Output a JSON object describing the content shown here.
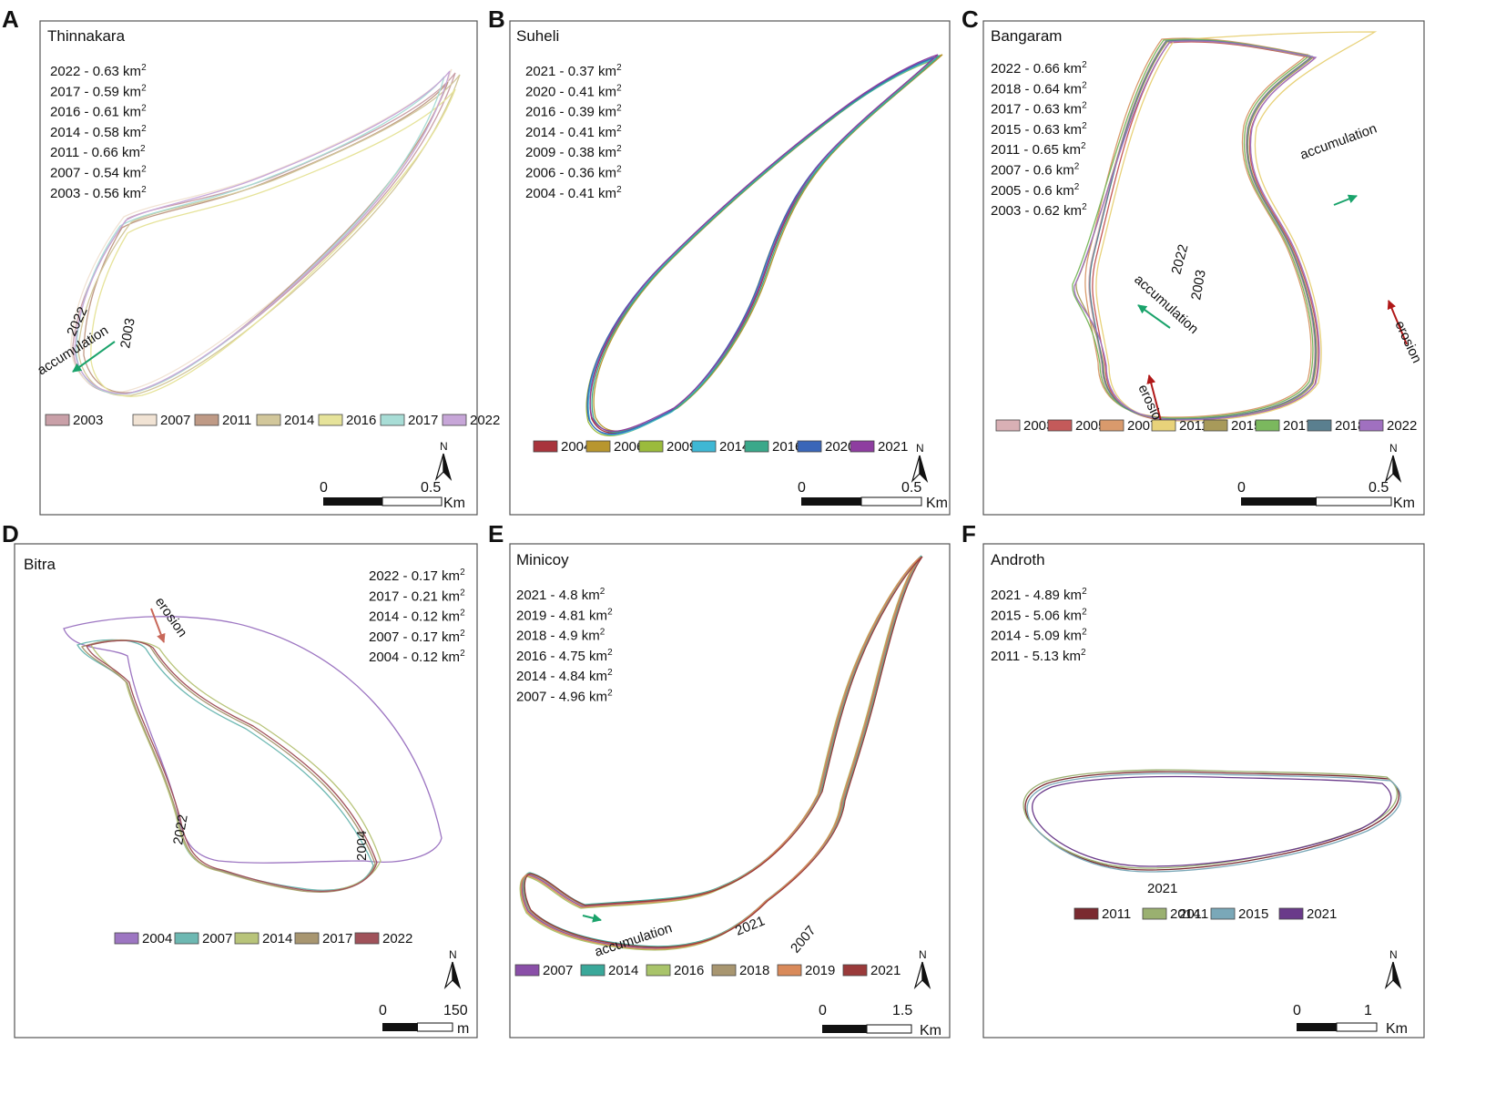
{
  "panels": [
    {
      "id": "A",
      "name": "Thinnakara",
      "areas": [
        {
          "year": "2022",
          "value": "0.63",
          "unit": "km",
          "sup": "2"
        },
        {
          "year": "2017",
          "value": "0.59",
          "unit": "km",
          "sup": "2"
        },
        {
          "year": "2016",
          "value": "0.61",
          "unit": "km",
          "sup": "2"
        },
        {
          "year": "2014",
          "value": "0.58",
          "unit": "km",
          "sup": "2"
        },
        {
          "year": "2011",
          "value": "0.66",
          "unit": "km",
          "sup": "2"
        },
        {
          "year": "2007",
          "value": "0.54",
          "unit": "km",
          "sup": "2"
        },
        {
          "year": "2003",
          "value": "0.56",
          "unit": "km",
          "sup": "2"
        }
      ],
      "legend": [
        {
          "year": "2003",
          "color": "#c9a0a8"
        },
        {
          "year": "2007",
          "color": "#f1e3d4"
        },
        {
          "year": "2011",
          "color": "#bf9a86"
        },
        {
          "year": "2014",
          "color": "#d2c79b"
        },
        {
          "year": "2016",
          "color": "#e6e39a"
        },
        {
          "year": "2017",
          "color": "#a8ddd6"
        },
        {
          "year": "2022",
          "color": "#c7a6d8"
        }
      ],
      "annotations": [
        {
          "text": "2022",
          "kind": "label"
        },
        {
          "text": "2003",
          "kind": "label"
        },
        {
          "text": "accumulation",
          "kind": "accumulation",
          "arrow_color": "#1aa36b"
        }
      ],
      "scale": {
        "zero": "0",
        "max": "0.5",
        "unit": "Km"
      },
      "north": "N"
    },
    {
      "id": "B",
      "name": "Suheli",
      "areas": [
        {
          "year": "2021",
          "value": "0.37",
          "unit": "km",
          "sup": "2"
        },
        {
          "year": "2020",
          "value": "0.41",
          "unit": "km",
          "sup": "2"
        },
        {
          "year": "2016",
          "value": "0.39",
          "unit": "km",
          "sup": "2"
        },
        {
          "year": "2014",
          "value": "0.41",
          "unit": "km",
          "sup": "2"
        },
        {
          "year": "2009",
          "value": "0.38",
          "unit": "km",
          "sup": "2"
        },
        {
          "year": "2006",
          "value": "0.36",
          "unit": "km",
          "sup": "2"
        },
        {
          "year": "2004",
          "value": "0.41",
          "unit": "km",
          "sup": "2"
        }
      ],
      "legend": [
        {
          "year": "2004",
          "color": "#a8343c"
        },
        {
          "year": "2006",
          "color": "#b8962e"
        },
        {
          "year": "2009",
          "color": "#9bbb3c"
        },
        {
          "year": "2014",
          "color": "#3fb7d4"
        },
        {
          "year": "2016",
          "color": "#3aa88a"
        },
        {
          "year": "2020",
          "color": "#3a66b8"
        },
        {
          "year": "2021",
          "color": "#8e3ea0"
        }
      ],
      "annotations": [],
      "scale": {
        "zero": "0",
        "max": "0.5",
        "unit": "Km"
      },
      "north": "N"
    },
    {
      "id": "C",
      "name": "Bangaram",
      "areas": [
        {
          "year": "2022",
          "value": "0.66",
          "unit": "km",
          "sup": "2"
        },
        {
          "year": "2018",
          "value": "0.64",
          "unit": "km",
          "sup": "2"
        },
        {
          "year": "2017",
          "value": "0.63",
          "unit": "km",
          "sup": "2"
        },
        {
          "year": "2015",
          "value": "0.63",
          "unit": "km",
          "sup": "2"
        },
        {
          "year": "2011",
          "value": "0.65",
          "unit": "km",
          "sup": "2"
        },
        {
          "year": "2007",
          "value": "0.6",
          "unit": "km",
          "sup": "2"
        },
        {
          "year": "2005",
          "value": "0.6",
          "unit": "km",
          "sup": "2"
        },
        {
          "year": "2003",
          "value": "0.62",
          "unit": "km",
          "sup": "2"
        }
      ],
      "legend": [
        {
          "year": "2003",
          "color": "#d9b0b5"
        },
        {
          "year": "2005",
          "color": "#c45a5a"
        },
        {
          "year": "2007",
          "color": "#d99a6c"
        },
        {
          "year": "2011",
          "color": "#e8d27a"
        },
        {
          "year": "2015",
          "color": "#a89a5a"
        },
        {
          "year": "2017",
          "color": "#7bb85e"
        },
        {
          "year": "2018",
          "color": "#5a7f8f"
        },
        {
          "year": "2022",
          "color": "#a070c0"
        }
      ],
      "annotations": [
        {
          "text": "accumulation",
          "kind": "accumulation",
          "arrow_color": "#1aa36b"
        },
        {
          "text": "2022",
          "kind": "label"
        },
        {
          "text": "2003",
          "kind": "label"
        },
        {
          "text": "accumulation",
          "kind": "accumulation",
          "arrow_color": "#1aa36b"
        },
        {
          "text": "erosion",
          "kind": "erosion",
          "arrow_color": "#b01818"
        },
        {
          "text": "erosion",
          "kind": "erosion",
          "arrow_color": "#b01818"
        }
      ],
      "scale": {
        "zero": "0",
        "max": "0.5",
        "unit": "Km"
      },
      "north": "N"
    },
    {
      "id": "D",
      "name": "Bitra",
      "areas": [
        {
          "year": "2022",
          "value": "0.17",
          "unit": "km",
          "sup": "2"
        },
        {
          "year": "2017",
          "value": "0.21",
          "unit": "km",
          "sup": "2"
        },
        {
          "year": "2014",
          "value": "0.12",
          "unit": "km",
          "sup": "2"
        },
        {
          "year": "2007",
          "value": "0.17",
          "unit": "km",
          "sup": "2"
        },
        {
          "year": "2004",
          "value": "0.12",
          "unit": "km",
          "sup": "2"
        }
      ],
      "legend": [
        {
          "year": "2004",
          "color": "#9d76c2"
        },
        {
          "year": "2007",
          "color": "#6db8b2"
        },
        {
          "year": "2014",
          "color": "#b8c47a"
        },
        {
          "year": "2017",
          "color": "#a89670"
        },
        {
          "year": "2022",
          "color": "#a0525a"
        }
      ],
      "annotations": [
        {
          "text": "erosion",
          "kind": "erosion",
          "arrow_color": "#c8685a"
        },
        {
          "text": "2022",
          "kind": "label"
        },
        {
          "text": "2004",
          "kind": "label"
        }
      ],
      "scale": {
        "zero": "0",
        "max": "150",
        "unit": "m"
      },
      "north": "N"
    },
    {
      "id": "E",
      "name": "Minicoy",
      "areas": [
        {
          "year": "2021",
          "value": "4.8",
          "unit": "km",
          "sup": "2"
        },
        {
          "year": "2019",
          "value": "4.81",
          "unit": "km",
          "sup": "2"
        },
        {
          "year": "2018",
          "value": "4.9",
          "unit": "km",
          "sup": "2"
        },
        {
          "year": "2016",
          "value": "4.75",
          "unit": "km",
          "sup": "2"
        },
        {
          "year": "2014",
          "value": "4.84",
          "unit": "km",
          "sup": "2"
        },
        {
          "year": "2007",
          "value": "4.96",
          "unit": "km",
          "sup": "2"
        }
      ],
      "legend": [
        {
          "year": "2007",
          "color": "#8a4fa8"
        },
        {
          "year": "2014",
          "color": "#3aa89a"
        },
        {
          "year": "2016",
          "color": "#a9c46a"
        },
        {
          "year": "2018",
          "color": "#a89670"
        },
        {
          "year": "2019",
          "color": "#d98a5a"
        },
        {
          "year": "2021",
          "color": "#9a3a3a"
        }
      ],
      "annotations": [
        {
          "text": "accumulation",
          "kind": "accumulation",
          "arrow_color": "#1aa36b"
        },
        {
          "text": "2021",
          "kind": "label"
        },
        {
          "text": "2007",
          "kind": "label"
        }
      ],
      "scale": {
        "zero": "0",
        "max": "1.5",
        "unit": "Km"
      },
      "north": "N"
    },
    {
      "id": "F",
      "name": "Androth",
      "areas": [
        {
          "year": "2021",
          "value": "4.89",
          "unit": "km",
          "sup": "2"
        },
        {
          "year": "2015",
          "value": "5.06",
          "unit": "km",
          "sup": "2"
        },
        {
          "year": "2014",
          "value": "5.09",
          "unit": "km",
          "sup": "2"
        },
        {
          "year": "2011",
          "value": "5.13",
          "unit": "km",
          "sup": "2"
        }
      ],
      "legend": [
        {
          "year": "2011",
          "color": "#7a2a30"
        },
        {
          "year": "2014",
          "color": "#9ab070"
        },
        {
          "year": "2015",
          "color": "#7aa8b8"
        },
        {
          "year": "2021",
          "color": "#6a3a8a"
        }
      ],
      "annotations": [
        {
          "text": "2021",
          "kind": "label"
        },
        {
          "text": "2011",
          "kind": "label"
        }
      ],
      "scale": {
        "zero": "0",
        "max": "1",
        "unit": "Km"
      },
      "north": "N"
    }
  ]
}
